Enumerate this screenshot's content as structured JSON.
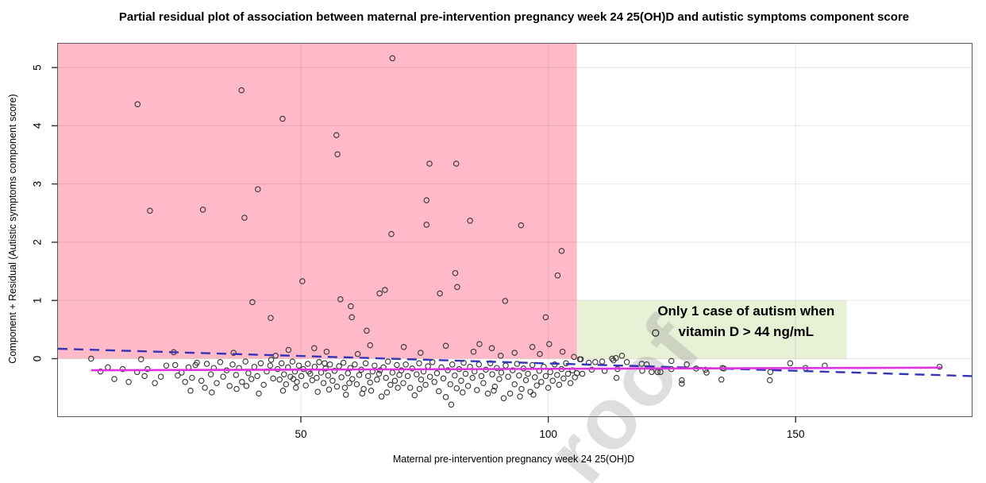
{
  "chart_data": {
    "type": "scatter",
    "title": "Partial residual plot of association between maternal pre-intervention pregnancy week 24 25(OH)D and autistic symptoms component score",
    "xlabel": "Maternal pre-intervention pregnancy week 24 25(OH)D",
    "ylabel": "Component + Residual (Autistic symptoms component score)",
    "xlim": [
      0.9,
      185.6
    ],
    "ylim": [
      -0.99,
      5.41
    ],
    "x_ticks": [
      50,
      100,
      150
    ],
    "y_ticks": [
      0,
      1,
      2,
      3,
      4,
      5
    ],
    "grid": true,
    "legend": "none",
    "marker": {
      "shape": "open-circle",
      "radius": 3.2,
      "stroke": "#333333"
    },
    "gridline_color": "rgba(0,0,0,0.08)",
    "frame_color": "#5a5a5a",
    "regions": [
      {
        "name": "autism-cases-region",
        "color": "#FFB9C8",
        "x0": 0.9,
        "x1": 105.8,
        "y0": 0,
        "y1": 5.41
      },
      {
        "name": "no-autism-region",
        "color": "#E8F0D6",
        "x0": 105.8,
        "x1": 160.3,
        "y0": 0,
        "y1": 1.0
      }
    ],
    "lines": [
      {
        "name": "linear-fit-line",
        "style": "dashed",
        "color": "#3434B4",
        "width": 2.4,
        "points": [
          [
            0.9,
            0.17
          ],
          [
            185.6,
            -0.3
          ]
        ]
      },
      {
        "name": "smooth-fit-line",
        "style": "solid",
        "color": "#E030E0",
        "width": 2.6,
        "points": [
          [
            7.6,
            -0.2
          ],
          [
            179.5,
            -0.155
          ]
        ]
      }
    ],
    "annotation": {
      "x": 140,
      "y": 0.74,
      "line_gap_y": 0.355,
      "lines": [
        "Only 1 case of autism when",
        "vitamin D > 44 ng/mL"
      ],
      "marker": [
        121.7,
        0.44
      ]
    },
    "points": [
      [
        17,
        4.37
      ],
      [
        38,
        4.61
      ],
      [
        68.5,
        5.16
      ],
      [
        46.3,
        4.12
      ],
      [
        57.2,
        3.84
      ],
      [
        57.4,
        3.51
      ],
      [
        76,
        3.35
      ],
      [
        81.4,
        3.35
      ],
      [
        41.3,
        2.91
      ],
      [
        75.4,
        2.72
      ],
      [
        75.4,
        2.3
      ],
      [
        19.5,
        2.54
      ],
      [
        30.2,
        2.56
      ],
      [
        38.6,
        2.42
      ],
      [
        84.2,
        2.37
      ],
      [
        94.5,
        2.29
      ],
      [
        68.3,
        2.14
      ],
      [
        102.7,
        1.85
      ],
      [
        81.2,
        1.47
      ],
      [
        101.9,
        1.43
      ],
      [
        50.3,
        1.33
      ],
      [
        81.6,
        1.23
      ],
      [
        67,
        1.18
      ],
      [
        65.9,
        1.12
      ],
      [
        78.1,
        1.12
      ],
      [
        58,
        1.02
      ],
      [
        91.3,
        0.99
      ],
      [
        40.2,
        0.97
      ],
      [
        60.1,
        0.9
      ],
      [
        43.9,
        0.7
      ],
      [
        60.3,
        0.71
      ],
      [
        99.5,
        0.71
      ],
      [
        63.3,
        0.48
      ],
      [
        64,
        0.23
      ],
      [
        52.7,
        0.18
      ],
      [
        24.3,
        0.11
      ],
      [
        7.6,
        0.0
      ],
      [
        17.7,
        -0.01
      ],
      [
        47.5,
        0.15
      ],
      [
        55.2,
        0.12
      ],
      [
        70.8,
        0.2
      ],
      [
        74.2,
        0.1
      ],
      [
        79.3,
        0.22
      ],
      [
        84.9,
        0.12
      ],
      [
        88.6,
        0.18
      ],
      [
        93.2,
        0.1
      ],
      [
        96.8,
        0.2
      ],
      [
        100.2,
        0.25
      ],
      [
        102.9,
        0.12
      ],
      [
        86.1,
        0.25
      ],
      [
        61.5,
        0.08
      ],
      [
        44.9,
        0.05
      ],
      [
        36.4,
        0.1
      ],
      [
        90.4,
        0.05
      ],
      [
        98.3,
        0.08
      ],
      [
        105.2,
        0.03
      ],
      [
        106.4,
        -0.01
      ],
      [
        9.5,
        -0.22
      ],
      [
        12.3,
        -0.35
      ],
      [
        14,
        -0.18
      ],
      [
        16.9,
        -0.23
      ],
      [
        19,
        -0.18
      ],
      [
        20.5,
        -0.42
      ],
      [
        21.7,
        -0.31
      ],
      [
        22.8,
        -0.12
      ],
      [
        24.6,
        -0.11
      ],
      [
        25.1,
        -0.29
      ],
      [
        18.4,
        -0.3
      ],
      [
        15.2,
        -0.4
      ],
      [
        11,
        -0.15
      ],
      [
        25.9,
        -0.24
      ],
      [
        26.6,
        -0.4
      ],
      [
        27.3,
        -0.15
      ],
      [
        28,
        -0.33
      ],
      [
        28.7,
        -0.11
      ],
      [
        29,
        -0.07
      ],
      [
        29.9,
        -0.38
      ],
      [
        30.6,
        -0.5
      ],
      [
        31,
        -0.09
      ],
      [
        31.8,
        -0.27
      ],
      [
        32.4,
        -0.16
      ],
      [
        33,
        -0.42
      ],
      [
        33.7,
        -0.06
      ],
      [
        34.3,
        -0.31
      ],
      [
        35,
        -0.2
      ],
      [
        35.6,
        -0.47
      ],
      [
        36.2,
        -0.1
      ],
      [
        36.9,
        -0.28
      ],
      [
        37.5,
        -0.16
      ],
      [
        38.1,
        -0.4
      ],
      [
        38.8,
        -0.05
      ],
      [
        39.4,
        -0.25
      ],
      [
        40,
        -0.35
      ],
      [
        40.6,
        -0.14
      ],
      [
        41.2,
        -0.3
      ],
      [
        41.9,
        -0.08
      ],
      [
        42.5,
        -0.45
      ],
      [
        43.1,
        -0.22
      ],
      [
        43.8,
        -0.12
      ],
      [
        44.4,
        -0.34
      ],
      [
        27.7,
        -0.55
      ],
      [
        32,
        -0.58
      ],
      [
        37,
        -0.52
      ],
      [
        41.5,
        -0.6
      ],
      [
        44,
        -0.02
      ],
      [
        39,
        -0.47
      ],
      [
        45.3,
        -0.18
      ],
      [
        45.7,
        -0.36
      ],
      [
        46.1,
        -0.08
      ],
      [
        46.6,
        -0.27
      ],
      [
        47,
        -0.44
      ],
      [
        47.4,
        -0.15
      ],
      [
        47.9,
        -0.31
      ],
      [
        48.3,
        -0.05
      ],
      [
        48.8,
        -0.22
      ],
      [
        49.2,
        -0.4
      ],
      [
        49.6,
        -0.12
      ],
      [
        50.1,
        -0.3
      ],
      [
        50.5,
        -0.18
      ],
      [
        51,
        -0.46
      ],
      [
        51.4,
        -0.09
      ],
      [
        51.9,
        -0.26
      ],
      [
        52.3,
        -0.37
      ],
      [
        52.8,
        -0.14
      ],
      [
        53.2,
        -0.33
      ],
      [
        53.7,
        -0.06
      ],
      [
        54.1,
        -0.24
      ],
      [
        54.6,
        -0.42
      ],
      [
        55,
        -0.17
      ],
      [
        55.5,
        -0.29
      ],
      [
        55.9,
        -0.1
      ],
      [
        56.4,
        -0.38
      ],
      [
        56.8,
        -0.21
      ],
      [
        57.3,
        -0.48
      ],
      [
        57.7,
        -0.13
      ],
      [
        58.2,
        -0.32
      ],
      [
        58.6,
        -0.07
      ],
      [
        59.1,
        -0.62
      ],
      [
        59.5,
        -0.25
      ],
      [
        60,
        -0.16
      ],
      [
        60.4,
        -0.35
      ],
      [
        60.9,
        -0.1
      ],
      [
        61.3,
        -0.44
      ],
      [
        61.8,
        -0.28
      ],
      [
        62.2,
        -0.19
      ],
      [
        62.7,
        -0.52
      ],
      [
        63.1,
        -0.08
      ],
      [
        63.6,
        -0.3
      ],
      [
        64,
        -0.41
      ],
      [
        64.5,
        -0.22
      ],
      [
        64.9,
        -0.12
      ],
      [
        65.4,
        -0.36
      ],
      [
        65.8,
        -0.26
      ],
      [
        66.3,
        -0.65
      ],
      [
        66.7,
        -0.15
      ],
      [
        67.2,
        -0.33
      ],
      [
        67.6,
        -0.05
      ],
      [
        68.1,
        -0.45
      ],
      [
        68.5,
        -0.24
      ],
      [
        69,
        -0.38
      ],
      [
        69.4,
        -0.11
      ],
      [
        69.9,
        -0.28
      ],
      [
        46.4,
        -0.55
      ],
      [
        53.4,
        -0.57
      ],
      [
        58.9,
        -0.5
      ],
      [
        62.4,
        -0.6
      ],
      [
        67.4,
        -0.58
      ],
      [
        49,
        -0.5
      ],
      [
        55.7,
        -0.53
      ],
      [
        64.2,
        -0.55
      ],
      [
        69.6,
        -0.5
      ],
      [
        51.6,
        -0.22
      ],
      [
        59.8,
        -0.42
      ],
      [
        66,
        -0.2
      ],
      [
        48.5,
        -0.35
      ],
      [
        54.8,
        -0.08
      ],
      [
        70.3,
        -0.2
      ],
      [
        70.7,
        -0.42
      ],
      [
        71.2,
        -0.1
      ],
      [
        71.6,
        -0.3
      ],
      [
        72.1,
        -0.5
      ],
      [
        72.5,
        -0.17
      ],
      [
        73,
        -0.63
      ],
      [
        73.4,
        -0.27
      ],
      [
        73.9,
        -0.08
      ],
      [
        74.3,
        -0.36
      ],
      [
        74.8,
        -0.22
      ],
      [
        75.2,
        -0.45
      ],
      [
        75.7,
        -0.13
      ],
      [
        76.1,
        -0.31
      ],
      [
        76.6,
        -0.06
      ],
      [
        77,
        -0.4
      ],
      [
        77.5,
        -0.25
      ],
      [
        77.9,
        -0.56
      ],
      [
        78.4,
        -0.15
      ],
      [
        78.8,
        -0.34
      ],
      [
        79.3,
        -0.66
      ],
      [
        79.7,
        -0.2
      ],
      [
        80.2,
        -0.44
      ],
      [
        80.4,
        -0.79
      ],
      [
        80.6,
        -0.1
      ],
      [
        81.1,
        -0.29
      ],
      [
        81.5,
        -0.51
      ],
      [
        82,
        -0.18
      ],
      [
        82.4,
        -0.38
      ],
      [
        82.9,
        -0.07
      ],
      [
        83.3,
        -0.26
      ],
      [
        83.8,
        -0.47
      ],
      [
        84.2,
        -0.14
      ],
      [
        84.7,
        -0.33
      ],
      [
        85.1,
        -0.22
      ],
      [
        85.6,
        -0.54
      ],
      [
        86,
        -0.1
      ],
      [
        86.5,
        -0.3
      ],
      [
        86.9,
        -0.42
      ],
      [
        87.4,
        -0.19
      ],
      [
        87.8,
        -0.6
      ],
      [
        88.3,
        -0.08
      ],
      [
        88.7,
        -0.27
      ],
      [
        89.2,
        -0.48
      ],
      [
        89.6,
        -0.16
      ],
      [
        90.1,
        -0.35
      ],
      [
        90.5,
        -0.24
      ],
      [
        91,
        -0.68
      ],
      [
        91.4,
        -0.12
      ],
      [
        91.9,
        -0.31
      ],
      [
        92.3,
        -0.6
      ],
      [
        92.8,
        -0.2
      ],
      [
        93.2,
        -0.44
      ],
      [
        93.7,
        -0.09
      ],
      [
        94.1,
        -0.29
      ],
      [
        94.6,
        -0.52
      ],
      [
        95,
        -0.17
      ],
      [
        95.5,
        -0.37
      ],
      [
        95.9,
        -0.26
      ],
      [
        96.4,
        -0.57
      ],
      [
        96.8,
        -0.11
      ],
      [
        97.3,
        -0.32
      ],
      [
        97.7,
        -0.46
      ],
      [
        98.2,
        -0.21
      ],
      [
        98.6,
        -0.4
      ],
      [
        99.1,
        -0.14
      ],
      [
        99.5,
        -0.3
      ],
      [
        100,
        -0.5
      ],
      [
        100.4,
        -0.23
      ],
      [
        100.9,
        -0.38
      ],
      [
        101.3,
        -0.1
      ],
      [
        101.8,
        -0.28
      ],
      [
        102.2,
        -0.45
      ],
      [
        102.7,
        -0.18
      ],
      [
        103.1,
        -0.34
      ],
      [
        103.6,
        -0.08
      ],
      [
        104,
        -0.26
      ],
      [
        104.5,
        -0.42
      ],
      [
        104.9,
        -0.2
      ],
      [
        105.4,
        -0.32
      ],
      [
        105.8,
        -0.25
      ],
      [
        74,
        -0.52
      ],
      [
        82.7,
        -0.58
      ],
      [
        97,
        -0.62
      ],
      [
        89,
        -0.55
      ],
      [
        94.3,
        -0.65
      ],
      [
        106.6,
        -0.01
      ],
      [
        106.9,
        -0.26
      ],
      [
        108.2,
        -0.07
      ],
      [
        109.5,
        -0.06
      ],
      [
        108.8,
        -0.19
      ],
      [
        110.9,
        -0.05
      ],
      [
        111.4,
        -0.21
      ],
      [
        112.9,
        0.0
      ],
      [
        113.2,
        -0.03
      ],
      [
        113.7,
        0.01
      ],
      [
        114,
        -0.18
      ],
      [
        113.8,
        -0.33
      ],
      [
        114.9,
        0.05
      ],
      [
        115.9,
        -0.06
      ],
      [
        118.9,
        -0.09
      ],
      [
        119,
        -0.21
      ],
      [
        119.9,
        -0.1
      ],
      [
        120.9,
        -0.23
      ],
      [
        122.1,
        -0.23
      ],
      [
        122.7,
        -0.23
      ],
      [
        124.9,
        -0.04
      ],
      [
        124.9,
        -0.18
      ],
      [
        127,
        -0.37
      ],
      [
        127,
        -0.43
      ],
      [
        128,
        -0.1
      ],
      [
        129.9,
        -0.17
      ],
      [
        131.8,
        -0.19
      ],
      [
        132,
        -0.24
      ],
      [
        135,
        -0.36
      ],
      [
        135.2,
        -0.16
      ],
      [
        135.5,
        -0.17
      ],
      [
        144.9,
        -0.23
      ],
      [
        144.8,
        -0.37
      ],
      [
        148.9,
        -0.08
      ],
      [
        152,
        -0.16
      ],
      [
        155.9,
        -0.12
      ],
      [
        179.1,
        -0.14
      ]
    ]
  },
  "watermark": {
    "text": "roof",
    "color": "#8a8a8a"
  }
}
